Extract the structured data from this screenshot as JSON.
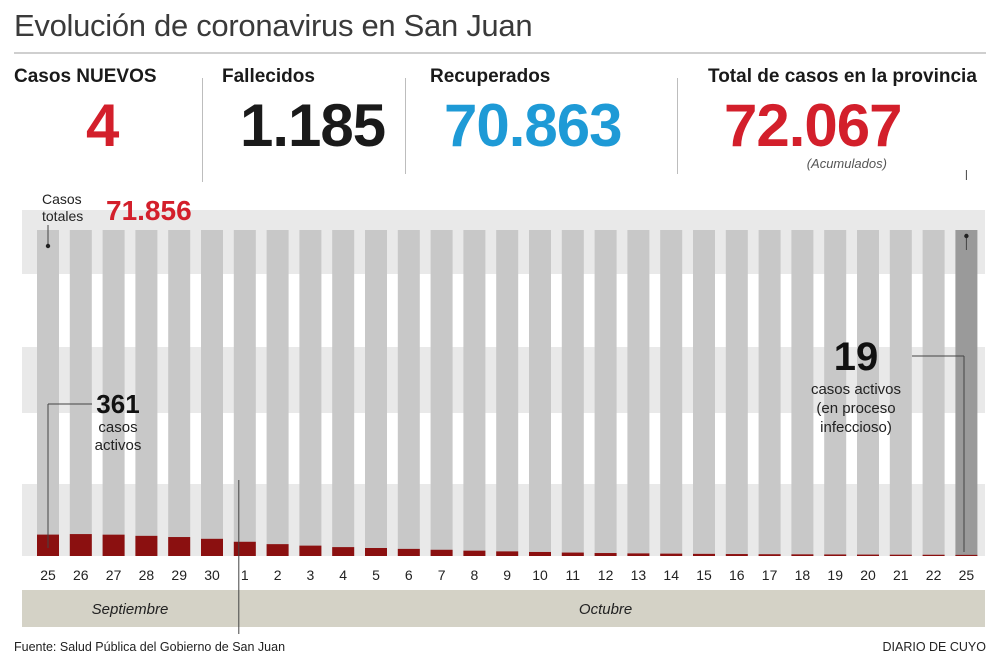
{
  "header": {
    "title": "Evolución de coronavirus en San Juan"
  },
  "stats": {
    "new_cases": {
      "label": "Casos NUEVOS",
      "value": "4"
    },
    "deaths": {
      "label": "Fallecidos",
      "value": "1.185"
    },
    "recovered": {
      "label": "Recuperados",
      "value": "70.863"
    },
    "total": {
      "label": "Total de casos en la provincia",
      "value": "72.067",
      "note": "(Acumulados)"
    }
  },
  "colors": {
    "new_cases": "#d31f2b",
    "deaths": "#1a1a1a",
    "recovered": "#1e9ad6",
    "total": "#d31f2b",
    "active_bar": "#8b1010",
    "bar": "#c8c8c8",
    "bar_highlight": "#9a9a9a",
    "band": "#e9e9e9",
    "month_band": "#d4d2c6"
  },
  "chart_data": {
    "type": "bar",
    "title": "",
    "annotations": {
      "start_total": {
        "label_line1": "Casos",
        "label_line2": "totales",
        "value": "71.856"
      },
      "start_active": {
        "value": "361",
        "line1": "casos",
        "line2": "activos"
      },
      "end_active": {
        "value": "19",
        "line1": "casos activos",
        "line2": "(en proceso",
        "line3": "infeccioso)"
      }
    },
    "categories": [
      "25",
      "26",
      "27",
      "28",
      "29",
      "30",
      "1",
      "2",
      "3",
      "4",
      "5",
      "6",
      "7",
      "8",
      "9",
      "10",
      "11",
      "12",
      "13",
      "14",
      "15",
      "16",
      "17",
      "18",
      "19",
      "20",
      "21",
      "22",
      "25"
    ],
    "months": [
      {
        "name": "Septiembre",
        "from": 0,
        "to": 5
      },
      {
        "name": "Octubre",
        "from": 6,
        "to": 28
      }
    ],
    "series": [
      {
        "values": [
          361,
          370,
          360,
          340,
          320,
          290,
          240,
          200,
          175,
          150,
          135,
          120,
          105,
          90,
          78,
          68,
          58,
          50,
          44,
          40,
          36,
          33,
          30,
          28,
          26,
          24,
          22,
          21,
          19
        ]
      }
    ],
    "ylim": [
      0,
      5500
    ],
    "grid": false
  },
  "footer": {
    "source": "Fuente: Salud Pública del Gobierno de San Juan",
    "brand": "DIARIO DE CUYO"
  }
}
